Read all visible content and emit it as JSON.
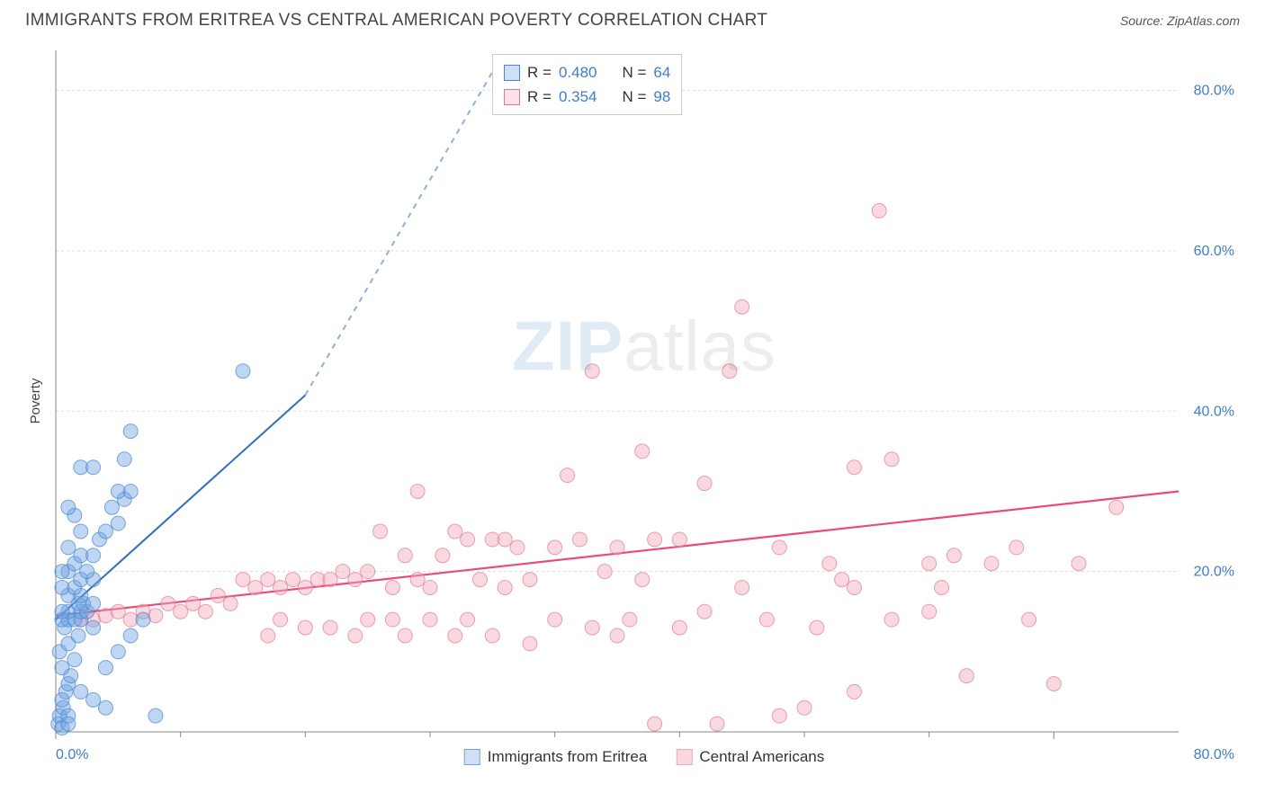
{
  "header": {
    "title": "IMMIGRANTS FROM ERITREA VS CENTRAL AMERICAN POVERTY CORRELATION CHART",
    "source_prefix": "Source: ",
    "source_name": "ZipAtlas.com"
  },
  "chart": {
    "type": "scatter",
    "y_label": "Poverty",
    "background_color": "#ffffff",
    "grid_color": "#dddddd",
    "axis_color": "#888888",
    "tick_label_color": "#3b7dd8",
    "tick_label_fontsize": 16,
    "xlim": [
      0,
      90
    ],
    "ylim": [
      0,
      85
    ],
    "x_ticks": [
      {
        "pos": 0,
        "label": "0.0%"
      },
      {
        "pos": 80,
        "label": "80.0%"
      }
    ],
    "x_minor_ticks": [
      10,
      20,
      30,
      40,
      50,
      60,
      70
    ],
    "y_ticks": [
      {
        "pos": 20,
        "label": "20.0%"
      },
      {
        "pos": 40,
        "label": "40.0%"
      },
      {
        "pos": 60,
        "label": "60.0%"
      },
      {
        "pos": 80,
        "label": "80.0%"
      }
    ],
    "watermark": {
      "zip": "ZIP",
      "atlas": "atlas"
    },
    "marker_radius": 8,
    "marker_opacity": 0.45,
    "series": [
      {
        "name": "Immigrants from Eritrea",
        "color": "#6fa3e0",
        "stroke": "#4a86d4",
        "r_value": "0.480",
        "n_value": "64",
        "trend": {
          "x1": 0,
          "y1": 14,
          "x2": 20,
          "y2": 42,
          "dash_to_x": 36,
          "dash_to_y": 85,
          "line_color": "#2f6fc9",
          "line_width": 2
        },
        "points": [
          [
            0.2,
            1
          ],
          [
            0.3,
            2
          ],
          [
            0.5,
            0.5
          ],
          [
            0.6,
            3
          ],
          [
            0.5,
            4
          ],
          [
            1,
            2
          ],
          [
            0.8,
            5
          ],
          [
            1,
            6
          ],
          [
            1.2,
            7
          ],
          [
            0.5,
            8
          ],
          [
            1.5,
            9
          ],
          [
            0.3,
            10
          ],
          [
            1,
            11
          ],
          [
            1.8,
            12
          ],
          [
            0.7,
            13
          ],
          [
            2,
            14
          ],
          [
            0.5,
            14
          ],
          [
            1,
            14
          ],
          [
            1.5,
            14
          ],
          [
            2,
            15
          ],
          [
            2.5,
            15
          ],
          [
            1,
            15
          ],
          [
            0.5,
            15
          ],
          [
            1.8,
            16
          ],
          [
            2.2,
            16
          ],
          [
            3,
            16
          ],
          [
            1,
            17
          ],
          [
            2,
            17
          ],
          [
            0.5,
            18
          ],
          [
            1.5,
            18
          ],
          [
            2,
            19
          ],
          [
            3,
            19
          ],
          [
            1,
            20
          ],
          [
            0.5,
            20
          ],
          [
            2.5,
            20
          ],
          [
            1.5,
            21
          ],
          [
            2,
            22
          ],
          [
            3,
            22
          ],
          [
            1,
            23
          ],
          [
            3.5,
            24
          ],
          [
            4,
            25
          ],
          [
            2,
            25
          ],
          [
            5,
            26
          ],
          [
            4.5,
            28
          ],
          [
            5.5,
            29
          ],
          [
            5,
            30
          ],
          [
            6,
            30
          ],
          [
            1.5,
            27
          ],
          [
            1,
            28
          ],
          [
            2,
            33
          ],
          [
            3,
            33
          ],
          [
            5.5,
            34
          ],
          [
            6,
            37.5
          ],
          [
            15,
            45
          ],
          [
            4,
            3
          ],
          [
            3,
            4
          ],
          [
            6,
            12
          ],
          [
            7,
            14
          ],
          [
            8,
            2
          ],
          [
            2,
            5
          ],
          [
            4,
            8
          ],
          [
            5,
            10
          ],
          [
            3,
            13
          ],
          [
            1,
            1
          ]
        ]
      },
      {
        "name": "Central Americans",
        "color": "#f4a8b8",
        "stroke": "#e37a95",
        "r_value": "0.354",
        "n_value": "98",
        "trend": {
          "x1": 0,
          "y1": 14.5,
          "x2": 90,
          "y2": 30,
          "line_color": "#e84c7a",
          "line_width": 2.2
        },
        "points": [
          [
            2,
            14
          ],
          [
            3,
            14
          ],
          [
            4,
            14.5
          ],
          [
            5,
            15
          ],
          [
            6,
            14
          ],
          [
            7,
            15
          ],
          [
            8,
            14.5
          ],
          [
            9,
            16
          ],
          [
            10,
            15
          ],
          [
            11,
            16
          ],
          [
            12,
            15
          ],
          [
            13,
            17
          ],
          [
            14,
            16
          ],
          [
            15,
            19
          ],
          [
            16,
            18
          ],
          [
            17,
            19
          ],
          [
            17,
            12
          ],
          [
            18,
            18
          ],
          [
            18,
            14
          ],
          [
            19,
            19
          ],
          [
            20,
            18
          ],
          [
            20,
            13
          ],
          [
            21,
            19
          ],
          [
            22,
            19
          ],
          [
            22,
            13
          ],
          [
            23,
            20
          ],
          [
            24,
            19
          ],
          [
            24,
            12
          ],
          [
            25,
            20
          ],
          [
            25,
            14
          ],
          [
            26,
            25
          ],
          [
            27,
            18
          ],
          [
            27,
            14
          ],
          [
            28,
            22
          ],
          [
            28,
            12
          ],
          [
            29,
            19
          ],
          [
            29,
            30
          ],
          [
            30,
            18
          ],
          [
            30,
            14
          ],
          [
            31,
            22
          ],
          [
            32,
            25
          ],
          [
            32,
            12
          ],
          [
            33,
            24
          ],
          [
            33,
            14
          ],
          [
            34,
            19
          ],
          [
            35,
            24
          ],
          [
            35,
            12
          ],
          [
            36,
            24
          ],
          [
            36,
            18
          ],
          [
            37,
            23
          ],
          [
            38,
            11
          ],
          [
            38,
            19
          ],
          [
            40,
            23
          ],
          [
            40,
            14
          ],
          [
            41,
            32
          ],
          [
            42,
            24
          ],
          [
            43,
            45
          ],
          [
            43,
            13
          ],
          [
            44,
            20
          ],
          [
            45,
            23
          ],
          [
            45,
            12
          ],
          [
            47,
            19
          ],
          [
            47,
            35
          ],
          [
            48,
            24
          ],
          [
            50,
            13
          ],
          [
            50,
            24
          ],
          [
            52,
            31
          ],
          [
            52,
            15
          ],
          [
            53,
            1
          ],
          [
            54,
            45
          ],
          [
            55,
            53
          ],
          [
            55,
            18
          ],
          [
            57,
            14
          ],
          [
            58,
            23
          ],
          [
            58,
            2
          ],
          [
            60,
            3
          ],
          [
            61,
            13
          ],
          [
            62,
            21
          ],
          [
            63,
            19
          ],
          [
            64,
            18
          ],
          [
            64,
            33
          ],
          [
            64,
            5
          ],
          [
            66,
            65
          ],
          [
            67,
            14
          ],
          [
            67,
            34
          ],
          [
            70,
            15
          ],
          [
            70,
            21
          ],
          [
            71,
            18
          ],
          [
            72,
            22
          ],
          [
            73,
            7
          ],
          [
            75,
            21
          ],
          [
            77,
            23
          ],
          [
            78,
            14
          ],
          [
            80,
            6
          ],
          [
            82,
            21
          ],
          [
            85,
            28
          ],
          [
            46,
            14
          ],
          [
            48,
            1
          ]
        ]
      }
    ],
    "legend_bottom": [
      {
        "label": "Immigrants from Eritrea",
        "fill": "#cfe0f5",
        "stroke": "#6fa3e0"
      },
      {
        "label": "Central Americans",
        "fill": "#f9d7df",
        "stroke": "#f4a8b8"
      }
    ],
    "legend_top": {
      "r_label": "R =",
      "n_label": "N ="
    }
  }
}
